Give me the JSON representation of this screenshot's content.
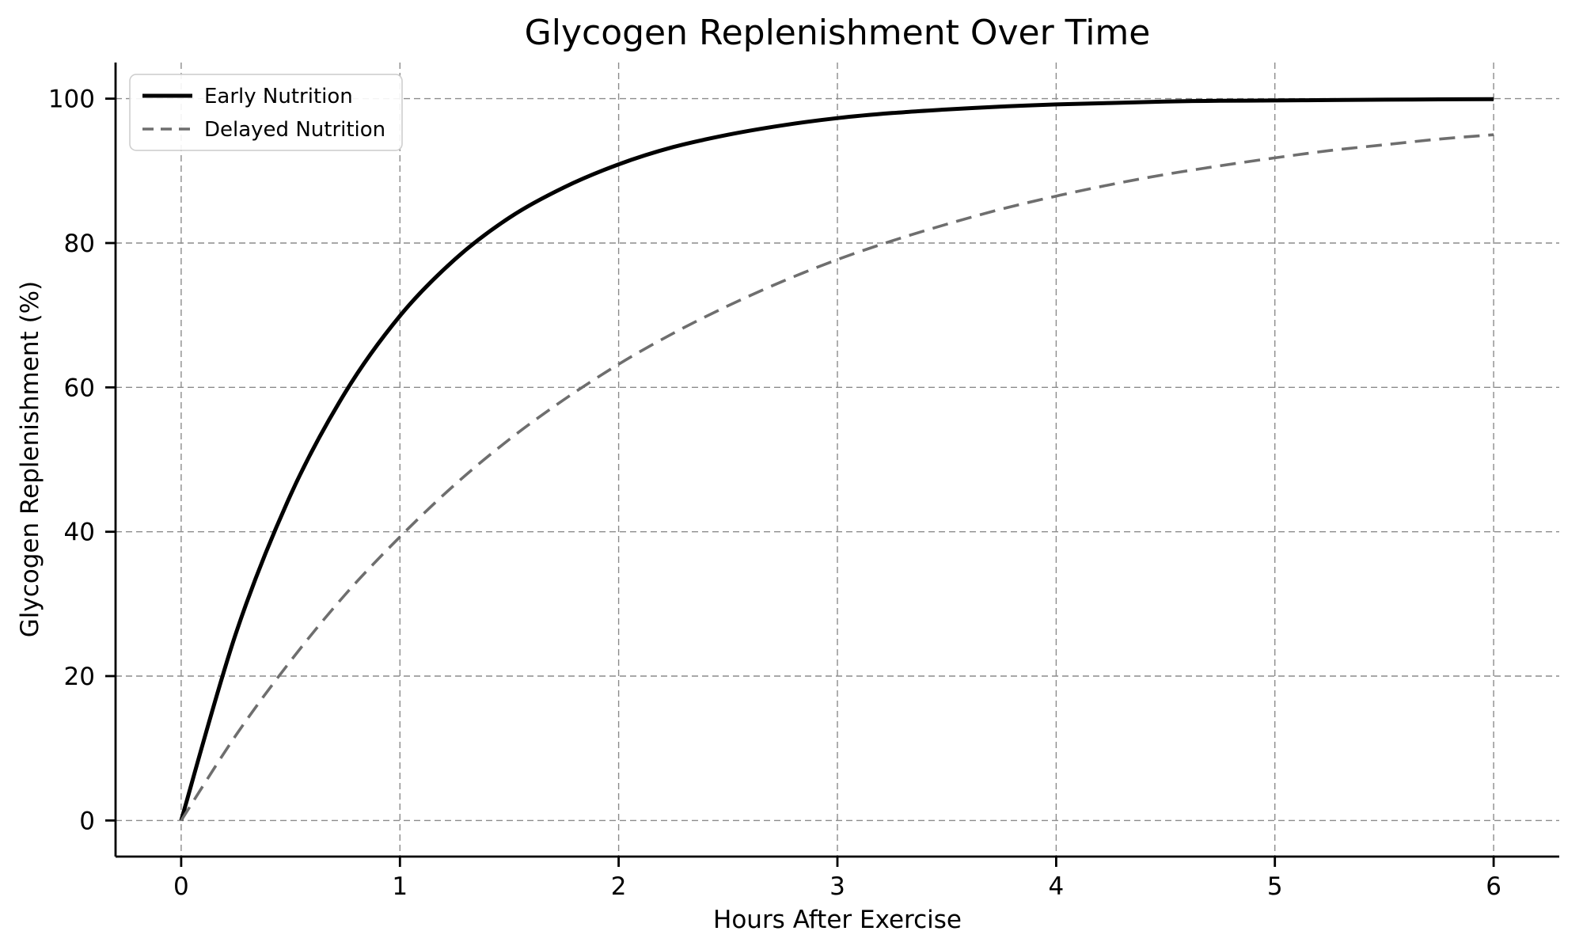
{
  "colors": {
    "early": "#000000",
    "delayed": "#6e6e6e",
    "grid": "#8c8c8c",
    "axis": "#000000",
    "legend_border": "#cccccc",
    "background": "#ffffff"
  },
  "chart_data": {
    "type": "line",
    "title": "Glycogen Replenishment Over Time",
    "xlabel": "Hours After Exercise",
    "ylabel": "Glycogen Replenishment (%)",
    "xlim": [
      -0.3,
      6.3
    ],
    "ylim": [
      -5,
      105
    ],
    "xticks": [
      0,
      1,
      2,
      3,
      4,
      5,
      6
    ],
    "yticks": [
      0,
      20,
      40,
      60,
      80,
      100
    ],
    "grid": true,
    "grid_style": "dashed",
    "legend_position": "upper-left",
    "x": [
      0,
      0.25,
      0.5,
      0.75,
      1,
      1.25,
      1.5,
      1.75,
      2,
      2.25,
      2.5,
      2.75,
      3,
      3.25,
      3.5,
      3.75,
      4,
      4.25,
      4.5,
      4.75,
      5,
      5.25,
      5.5,
      5.75,
      6
    ],
    "series": [
      {
        "name": "Early Nutrition",
        "style": "solid",
        "color": "#000000",
        "line_width": 5,
        "values": [
          0,
          25.9,
          45.1,
          59.3,
          69.9,
          77.7,
          83.5,
          87.7,
          90.9,
          93.3,
          95.0,
          96.3,
          97.3,
          98.0,
          98.5,
          98.9,
          99.2,
          99.4,
          99.6,
          99.7,
          99.75,
          99.8,
          99.86,
          99.9,
          99.93
        ],
        "values_note": ""
      },
      {
        "name": "Delayed Nutrition",
        "style": "dashed",
        "color": "#6e6e6e",
        "line_width": 3.6,
        "values": [
          0,
          11.8,
          22.1,
          31.3,
          39.3,
          46.5,
          52.8,
          58.3,
          63.2,
          67.5,
          71.3,
          74.7,
          77.7,
          80.3,
          82.6,
          84.7,
          86.5,
          88.1,
          89.5,
          90.7,
          91.8,
          92.8,
          93.6,
          94.4,
          95.0
        ],
        "values_note": ""
      }
    ]
  }
}
